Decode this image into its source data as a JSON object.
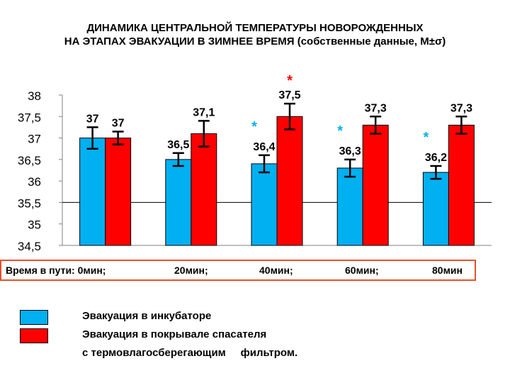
{
  "title_line1": "ДИНАМИКА ЦЕНТРАЛЬНОЙ ТЕМПЕРАТУРЫ НОВОРОЖДЕННЫХ",
  "title_line2": "НА ЭТАПАХ ЭВАКУАЦИИ В ЗИМНЕЕ ВРЕМЯ (собственные данные, М±σ)",
  "colors": {
    "incubator": "#00b0f0",
    "blanket": "#ff0000",
    "timebar_border": "#e8502a",
    "asterisk_blue": "#00b0f0",
    "asterisk_red": "#ff0000"
  },
  "chart_data": {
    "type": "bar",
    "categories": [
      "0мин",
      "20мин",
      "40мин",
      "60мин",
      "80мин"
    ],
    "ylim": [
      34.5,
      38
    ],
    "yticks": [
      "34,5",
      "35",
      "35,5",
      "36",
      "36,5",
      "37",
      "37,5",
      "38"
    ],
    "series": [
      {
        "name": "Эвакуация в инкубаторе",
        "values": [
          37,
          36.5,
          36.4,
          36.3,
          36.2
        ],
        "errors": [
          0.25,
          0.15,
          0.2,
          0.2,
          0.15
        ],
        "labels": [
          "37",
          "36,5",
          "36,4",
          "36,3",
          "36,2"
        ]
      },
      {
        "name": "Эвакуация в покрывале спасателя",
        "values": [
          37,
          37.1,
          37.5,
          37.3,
          37.3
        ],
        "errors": [
          0.15,
          0.3,
          0.3,
          0.2,
          0.2
        ],
        "labels": [
          "37",
          "37,1",
          "37,5",
          "37,3",
          "37,3"
        ]
      }
    ],
    "annotations": [
      {
        "category": 2,
        "series": 1,
        "text": "*",
        "color": "red"
      },
      {
        "category": 2,
        "series": 0,
        "text": "*",
        "color": "blue"
      },
      {
        "category": 3,
        "series": 0,
        "text": "*",
        "color": "blue"
      },
      {
        "category": 4,
        "series": 0,
        "text": "*",
        "color": "blue"
      }
    ]
  },
  "timebar": {
    "label": "Время в пути: 0мин;",
    "t20": "20мин;",
    "t40": "40мин;",
    "t60": "60мин;",
    "t80": "80мин"
  },
  "legend": {
    "item1": "Эвакуация в инкубаторе",
    "item2": "Эвакуация в покрывале спасателя",
    "item3": "с термовлагосберегающим     фильтром."
  }
}
